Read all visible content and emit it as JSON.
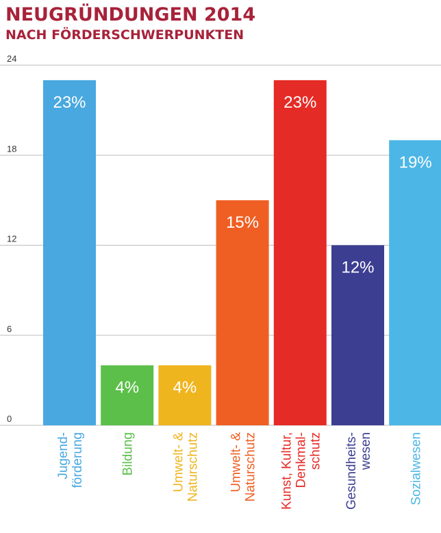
{
  "chart_data": {
    "type": "bar",
    "title": "NEUGRÜNDUNGEN 2014",
    "subtitle": "NACH FÖRDERSCHWERPUNKTEN",
    "ylim": [
      0,
      24
    ],
    "yticks": [
      "0",
      "6",
      "12",
      "18",
      "24"
    ],
    "grid": true,
    "categories": [
      [
        "Jugend-",
        "förderung"
      ],
      [
        "Bildung"
      ],
      [
        "Umwelt- &",
        "Naturschutz"
      ],
      [
        "Umwelt- &",
        "Naturschutz"
      ],
      [
        "Kunst, Kultur,",
        "Denkmal-",
        "schutz"
      ],
      [
        "Gesundheits-",
        "wesen"
      ],
      [
        "Sozialwesen"
      ]
    ],
    "values": [
      23,
      4,
      4,
      15,
      23,
      12,
      19
    ],
    "data_labels": [
      "23%",
      "4%",
      "4%",
      "15%",
      "23%",
      "12%",
      "19%"
    ],
    "colors": [
      "#48a8df",
      "#5bbf4a",
      "#efb51f",
      "#ef5f23",
      "#e52b26",
      "#3c3e91",
      "#4cb6e6"
    ]
  }
}
